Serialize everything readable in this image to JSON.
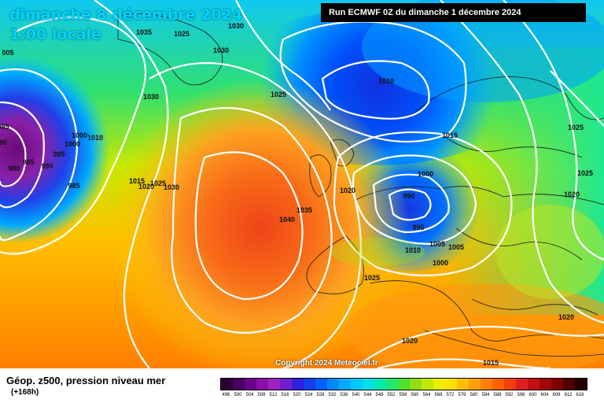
{
  "header": {
    "date_title": "dimanche 8 décembre 2024",
    "time_title": "1:00 locale",
    "run_info": "Run ECMWF 0Z du dimanche 1 décembre 2024"
  },
  "footer": {
    "field_name": "Géop. z500, pression niveau mer",
    "lead_time": "(+168h)",
    "copyright": "Copyright 2024 Meteociel.fr"
  },
  "isobar_labels": [
    "1035",
    "1025",
    "1030",
    "1030",
    "005",
    "1030",
    "1025",
    "1010",
    "985",
    "80",
    "985",
    "990",
    "980",
    "995",
    "1000",
    "1010",
    "1000",
    "985",
    "1015",
    "1020",
    "1025",
    "1030",
    "1040",
    "1035",
    "1020",
    "1000",
    "990",
    "995",
    "1005",
    "1010",
    "1005",
    "1000",
    "1025",
    "1015",
    "1025",
    "1025",
    "1020",
    "1020",
    "1020",
    "1015"
  ],
  "scale": {
    "labels": [
      "496",
      "500",
      "504",
      "508",
      "512",
      "516",
      "520",
      "524",
      "528",
      "532",
      "536",
      "540",
      "544",
      "548",
      "552",
      "556",
      "560",
      "564",
      "568",
      "572",
      "576",
      "580",
      "584",
      "588",
      "592",
      "596",
      "600",
      "604",
      "608",
      "612",
      "616"
    ],
    "colors": [
      "#2a0030",
      "#4a0060",
      "#6a0088",
      "#8a10a8",
      "#a020c0",
      "#7020d0",
      "#3020e0",
      "#1040f0",
      "#0060ff",
      "#0088ff",
      "#00aaff",
      "#00c8ff",
      "#00e0e8",
      "#00e8b0",
      "#20e870",
      "#50e030",
      "#90e010",
      "#c0e800",
      "#e8f000",
      "#ffe000",
      "#ffc000",
      "#ffa000",
      "#ff8000",
      "#ff6000",
      "#f04010",
      "#e02020",
      "#c01010",
      "#a00808",
      "#800000",
      "#500000",
      "#200000"
    ]
  },
  "colors": {
    "background_ocean": "#f7b000",
    "isobar": "#ffffff",
    "title": "#00d6ff"
  }
}
